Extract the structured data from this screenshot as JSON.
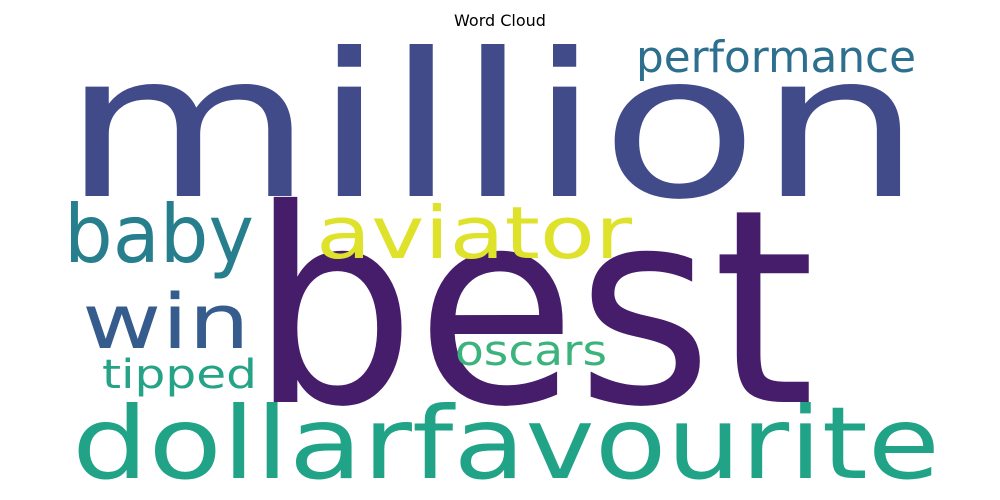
{
  "chart_data": {
    "type": "wordcloud",
    "title": "Word Cloud",
    "words": [
      {
        "text": "million",
        "color": "#424b8a"
      },
      {
        "text": "best",
        "color": "#461d6b"
      },
      {
        "text": "performance",
        "color": "#2c6f8e"
      },
      {
        "text": "aviator",
        "color": "#dfe22a"
      },
      {
        "text": "baby",
        "color": "#277f8e"
      },
      {
        "text": "win",
        "color": "#365c8d"
      },
      {
        "text": "oscars",
        "color": "#3bb37c"
      },
      {
        "text": "tipped",
        "color": "#25a386"
      },
      {
        "text": "dollar",
        "color": "#20a386"
      },
      {
        "text": "favourite",
        "color": "#20a386"
      }
    ]
  }
}
